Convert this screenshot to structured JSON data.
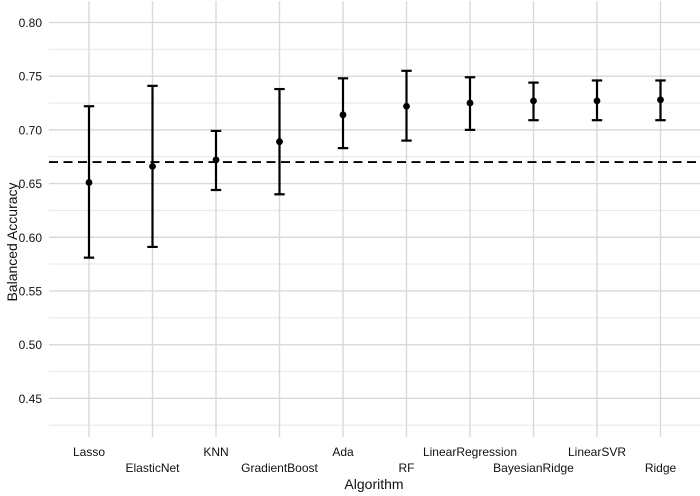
{
  "figure": {
    "background": "#ffffff",
    "text_color": "#111111",
    "grid_major_color": "#d9d9d9",
    "grid_minor_color": "#e9e9e9",
    "data_color": "#000000"
  },
  "chart_data": {
    "type": "scatter",
    "subtype": "point-estimates-with-error-bars",
    "title": "",
    "xlabel": "Algorithm",
    "ylabel": "Balanced Accuracy",
    "categories": [
      "Lasso",
      "ElasticNet",
      "KNN",
      "GradientBoost",
      "Ada",
      "RF",
      "LinearRegression",
      "BayesianRidge",
      "LinearSVR",
      "Ridge"
    ],
    "series": [
      {
        "name": "balanced-accuracy",
        "means": [
          0.651,
          0.666,
          0.672,
          0.689,
          0.714,
          0.722,
          0.725,
          0.727,
          0.727,
          0.728
        ],
        "upper": [
          0.722,
          0.741,
          0.699,
          0.738,
          0.748,
          0.755,
          0.749,
          0.744,
          0.746,
          0.746
        ],
        "lower": [
          0.581,
          0.591,
          0.644,
          0.64,
          0.683,
          0.69,
          0.7,
          0.709,
          0.709,
          0.709
        ]
      }
    ],
    "reference_line": {
      "value": 0.67,
      "style": "dashed",
      "color": "#000000"
    },
    "ylim": [
      0.414,
      0.82
    ],
    "yticks": [
      0.45,
      0.5,
      0.55,
      0.6,
      0.65,
      0.7,
      0.75,
      0.8
    ],
    "ytick_labels": [
      "0.45",
      "0.50",
      "0.55",
      "0.60",
      "0.65",
      "0.70",
      "0.75",
      "0.80"
    ],
    "grid": {
      "horizontal_major": true,
      "horizontal_minor": true,
      "vertical_major": true,
      "legend": "none"
    }
  }
}
